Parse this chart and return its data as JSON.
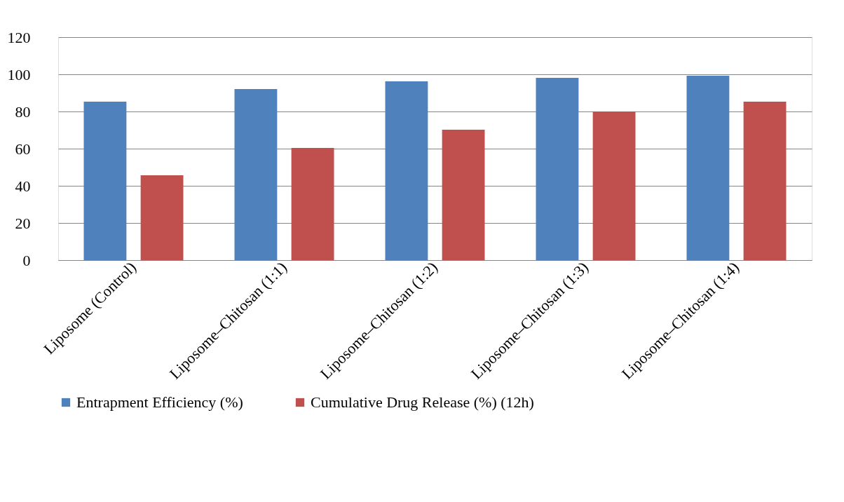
{
  "chart_data": {
    "type": "bar",
    "categories": [
      "Liposome (Control)",
      "Liposome–Chitosan (1:1)",
      "Liposome–Chitosan (1:2)",
      "Liposome–Chitosan (1:3)",
      "Liposome–Chitosan (1:4)"
    ],
    "series": [
      {
        "name": "Entrapment Efficiency (%)",
        "color": "#4f81bd",
        "values": [
          85.3,
          92.1,
          96.2,
          98.1,
          99.2
        ]
      },
      {
        "name": "Cumulative Drug Release (%) (12h)",
        "color": "#c0504d",
        "values": [
          45.7,
          60.4,
          70.2,
          80,
          85.3
        ]
      }
    ],
    "ylim": [
      0,
      120
    ],
    "yticks": [
      0,
      20,
      40,
      60,
      80,
      100,
      120
    ],
    "grid": "y",
    "legend": "bottom"
  }
}
